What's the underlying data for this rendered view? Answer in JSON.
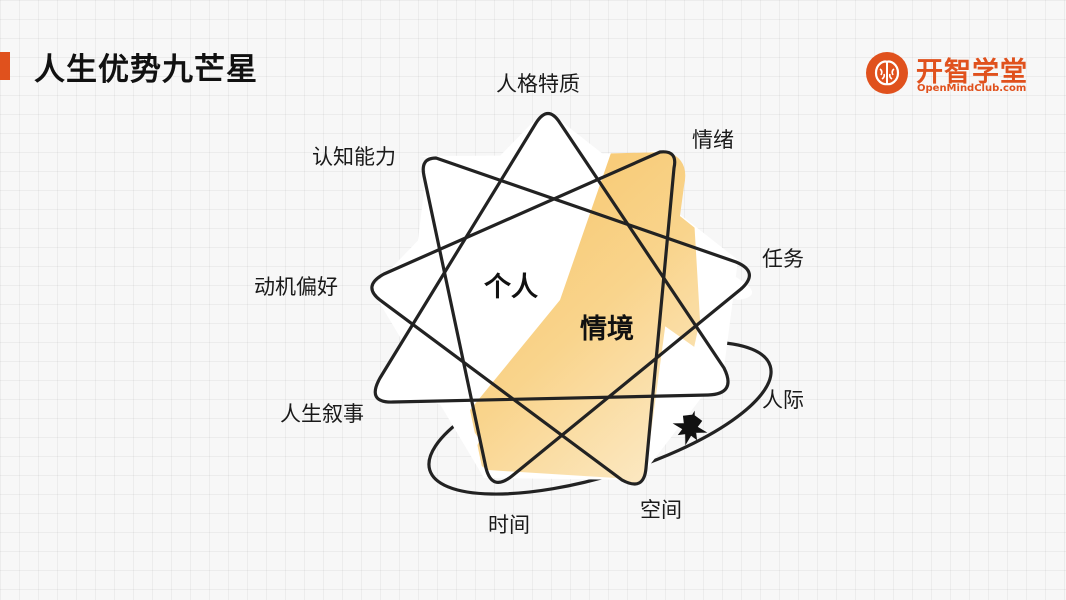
{
  "header": {
    "title": "人生优势九芒星",
    "accent_color": "#e0511d"
  },
  "logo": {
    "name": "开智学堂",
    "url": "OpenMindClub.com",
    "color": "#e0511d",
    "icon": "brain-icon"
  },
  "diagram": {
    "center_labels": {
      "individual": "个人",
      "situation": "情境"
    },
    "points": {
      "personality": "人格特质",
      "emotion": "情绪",
      "cognition": "认知能力",
      "task": "任务",
      "motivation": "动机偏好",
      "interpersonal": "人际",
      "life_narrative": "人生叙事",
      "space": "空间",
      "time": "时间"
    },
    "highlight_color": "#f7c266",
    "star_icon": "sparkle-icon"
  }
}
